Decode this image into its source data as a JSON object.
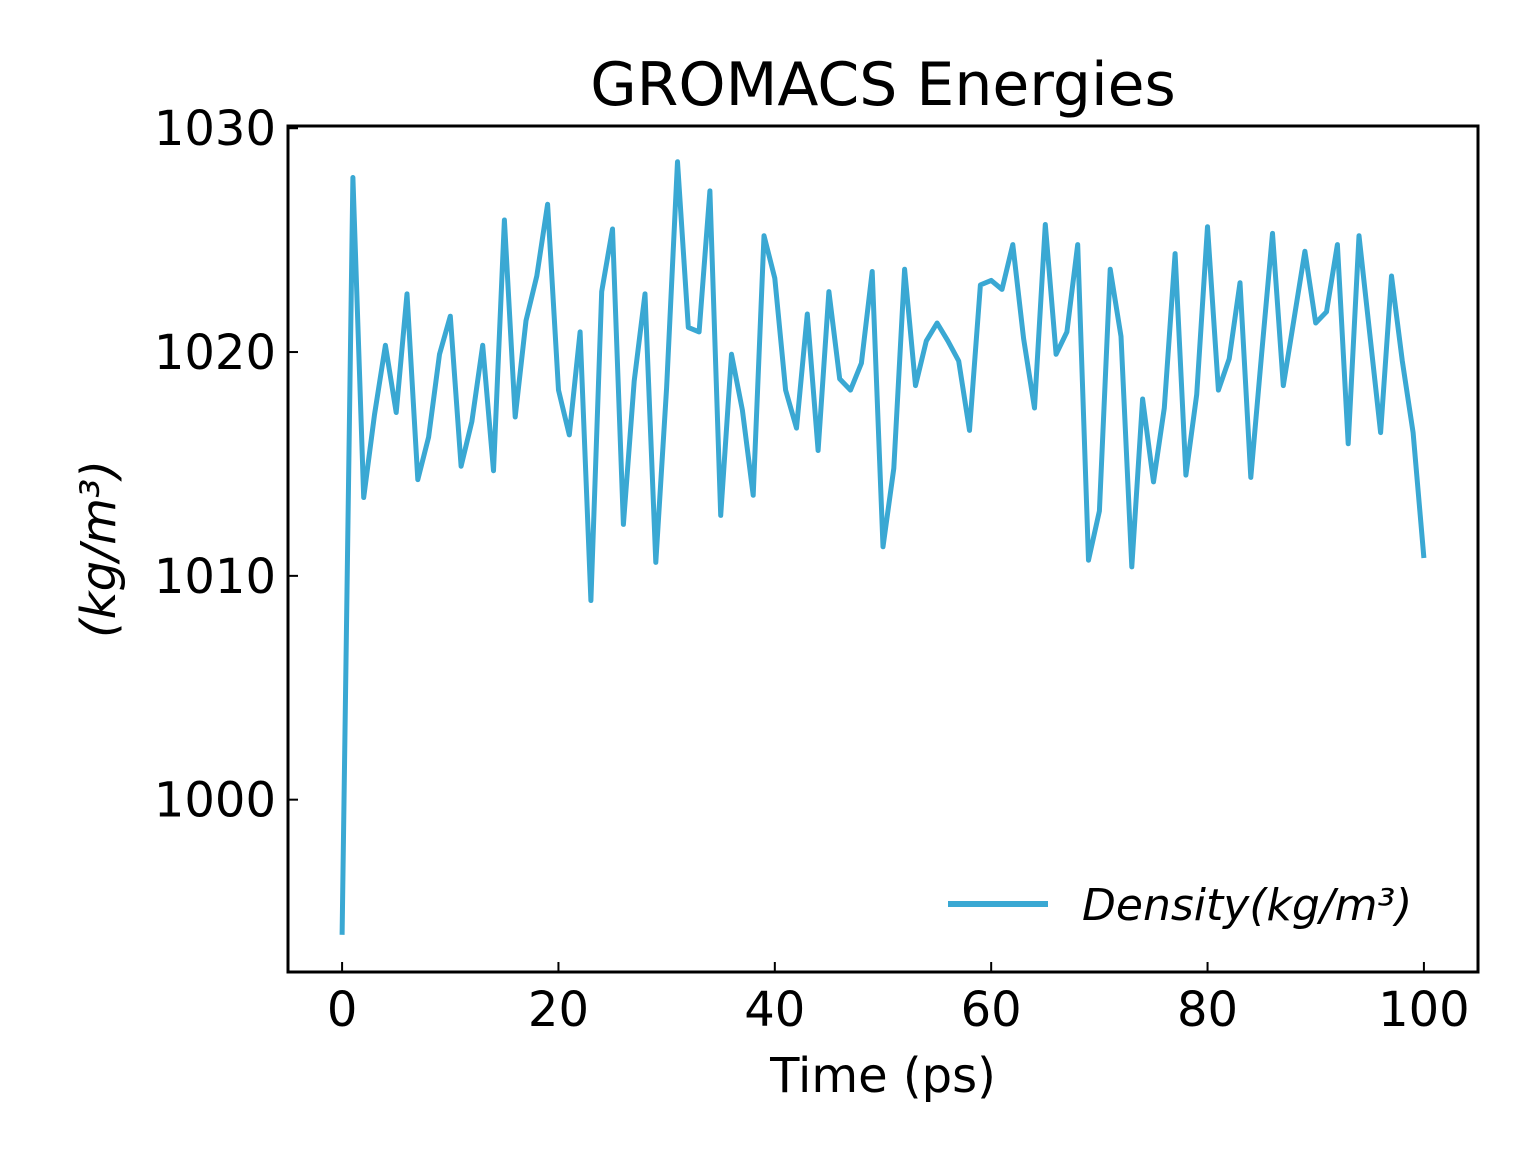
{
  "chart_data": {
    "type": "line",
    "title": "GROMACS Energies",
    "xlabel": "Time (ps)",
    "ylabel": "(kg/m³)",
    "xlim": [
      -5,
      105
    ],
    "ylim": [
      992.3,
      1030.1
    ],
    "xticks": [
      0,
      20,
      40,
      60,
      80,
      100
    ],
    "yticks": [
      1000,
      1010,
      1020,
      1030
    ],
    "grid": false,
    "legend_position": "lower-right",
    "color": "#3aa8d3",
    "series": [
      {
        "name": "Density(kg/m³)",
        "x": [
          0,
          1,
          2,
          3,
          4,
          5,
          6,
          7,
          8,
          9,
          10,
          11,
          12,
          13,
          14,
          15,
          16,
          17,
          18,
          19,
          20,
          21,
          22,
          23,
          24,
          25,
          26,
          27,
          28,
          29,
          30,
          31,
          32,
          33,
          34,
          35,
          36,
          37,
          38,
          39,
          40,
          41,
          42,
          43,
          44,
          45,
          46,
          47,
          48,
          49,
          50,
          51,
          52,
          53,
          54,
          55,
          56,
          57,
          58,
          59,
          60,
          61,
          62,
          63,
          64,
          65,
          66,
          67,
          68,
          69,
          70,
          71,
          72,
          73,
          74,
          75,
          76,
          77,
          78,
          79,
          80,
          81,
          82,
          83,
          84,
          85,
          86,
          87,
          88,
          89,
          90,
          91,
          92,
          93,
          94,
          95,
          96,
          97,
          98,
          99,
          100
        ],
        "values": [
          993.96,
          1027.8,
          1013.5,
          1017.2,
          1020.3,
          1017.3,
          1022.6,
          1014.3,
          1016.2,
          1019.9,
          1021.6,
          1014.9,
          1016.9,
          1020.3,
          1014.7,
          1025.9,
          1017.1,
          1021.4,
          1023.4,
          1026.6,
          1018.3,
          1016.3,
          1020.9,
          1008.9,
          1022.7,
          1025.5,
          1012.3,
          1018.7,
          1022.6,
          1010.6,
          1018.4,
          1028.5,
          1021.1,
          1020.9,
          1027.2,
          1012.7,
          1019.9,
          1017.4,
          1013.6,
          1025.2,
          1023.3,
          1018.3,
          1016.6,
          1021.7,
          1015.6,
          1022.7,
          1018.8,
          1018.3,
          1019.5,
          1023.6,
          1011.3,
          1014.8,
          1023.7,
          1018.5,
          1020.5,
          1021.3,
          1020.5,
          1019.6,
          1016.5,
          1023.0,
          1023.2,
          1022.8,
          1024.8,
          1020.6,
          1017.5,
          1025.7,
          1019.9,
          1020.9,
          1024.8,
          1010.7,
          1012.9,
          1023.7,
          1020.7,
          1010.4,
          1017.9,
          1014.2,
          1017.5,
          1024.4,
          1014.5,
          1018.1,
          1025.6,
          1018.3,
          1019.7,
          1023.1,
          1014.4,
          1019.9,
          1025.3,
          1018.5,
          1021.5,
          1024.5,
          1021.3,
          1021.8,
          1024.8,
          1015.9,
          1025.2,
          1020.8,
          1016.4,
          1023.4,
          1019.6,
          1016.4,
          1010.8
        ]
      }
    ]
  }
}
